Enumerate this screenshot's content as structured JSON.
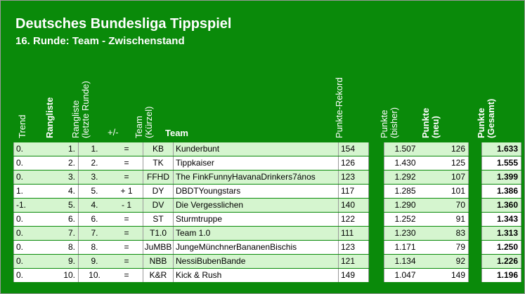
{
  "title": "Deutsches Bundesliga Tippspiel",
  "subtitle": "16. Runde: Team - Zwischenstand",
  "headers": {
    "trend": "Trend",
    "rangliste": "Rangliste",
    "rangliste_letzte_1": "Rangliste",
    "rangliste_letzte_2": "(letzte Runde)",
    "plusminus": "+/-",
    "team_kuerzel_1": "Team",
    "team_kuerzel_2": "(Kürzel)",
    "team": "Team",
    "punkte_rekord": "Punkte-Rekord",
    "punkte_bisher_1": "Punkte",
    "punkte_bisher_2": "(bisher)",
    "punkte_neu_1": "Punkte",
    "punkte_neu_2": "(neu)",
    "punkte_gesamt_1": "Punkte",
    "punkte_gesamt_2": "(Gesamt)"
  },
  "rows": [
    {
      "trend": "0.",
      "rank": "1.",
      "last": "1.",
      "diff": "=",
      "abbr": "KB",
      "team": "Kunderbunt",
      "record": "154",
      "bisher": "1.507",
      "neu": "126",
      "gesamt": "1.633"
    },
    {
      "trend": "0.",
      "rank": "2.",
      "last": "2.",
      "diff": "=",
      "abbr": "TK",
      "team": "Tippkaiser",
      "record": "126",
      "bisher": "1.430",
      "neu": "125",
      "gesamt": "1.555"
    },
    {
      "trend": "0.",
      "rank": "3.",
      "last": "3.",
      "diff": "=",
      "abbr": "FFHD",
      "team": "The FinkFunnyHavanaDrinkers7ános",
      "record": "123",
      "bisher": "1.292",
      "neu": "107",
      "gesamt": "1.399"
    },
    {
      "trend": "1.",
      "rank": "4.",
      "last": "5.",
      "diff": "+ 1",
      "abbr": "DY",
      "team": "DBDTYoungstars",
      "record": "117",
      "bisher": "1.285",
      "neu": "101",
      "gesamt": "1.386"
    },
    {
      "trend": "-1.",
      "rank": "5.",
      "last": "4.",
      "diff": "- 1",
      "abbr": "DV",
      "team": "Die Vergesslichen",
      "record": "140",
      "bisher": "1.290",
      "neu": "70",
      "gesamt": "1.360"
    },
    {
      "trend": "0.",
      "rank": "6.",
      "last": "6.",
      "diff": "=",
      "abbr": "ST",
      "team": "Sturmtruppe",
      "record": "122",
      "bisher": "1.252",
      "neu": "91",
      "gesamt": "1.343"
    },
    {
      "trend": "0.",
      "rank": "7.",
      "last": "7.",
      "diff": "=",
      "abbr": "T1.0",
      "team": "Team 1.0",
      "record": "111",
      "bisher": "1.230",
      "neu": "83",
      "gesamt": "1.313"
    },
    {
      "trend": "0.",
      "rank": "8.",
      "last": "8.",
      "diff": "=",
      "abbr": "JuMBB",
      "team": "JungeMünchnerBananenBischis",
      "record": "123",
      "bisher": "1.171",
      "neu": "79",
      "gesamt": "1.250"
    },
    {
      "trend": "0.",
      "rank": "9.",
      "last": "9.",
      "diff": "=",
      "abbr": "NBB",
      "team": "NessiBubenBande",
      "record": "121",
      "bisher": "1.134",
      "neu": "92",
      "gesamt": "1.226"
    },
    {
      "trend": "0.",
      "rank": "10.",
      "last": "10.",
      "diff": "=",
      "abbr": "K&R",
      "team": "Kick & Rush",
      "record": "149",
      "bisher": "1.047",
      "neu": "149",
      "gesamt": "1.196"
    }
  ]
}
